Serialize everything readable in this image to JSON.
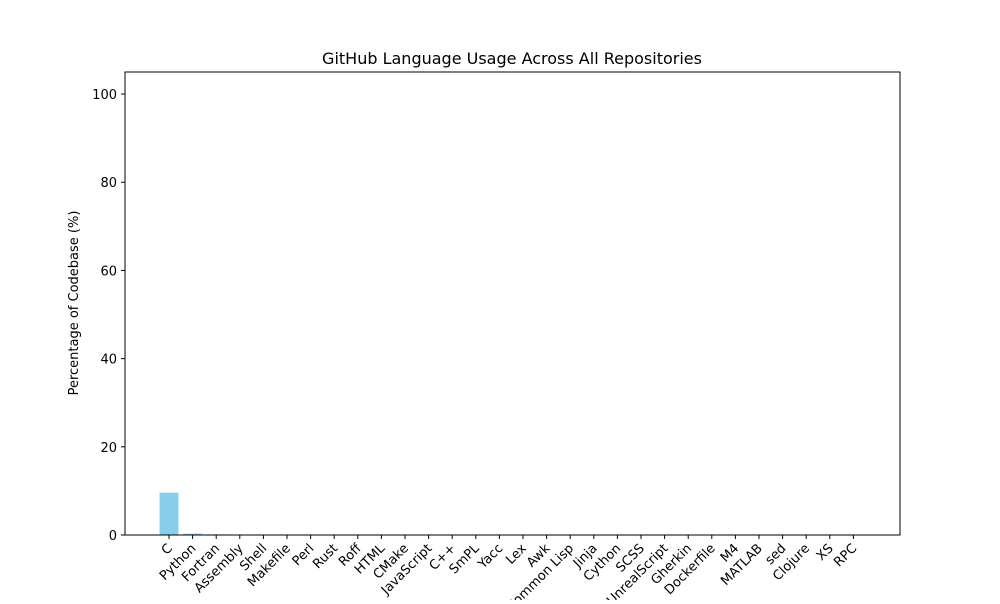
{
  "chart_data": {
    "type": "bar",
    "title": "GitHub Language Usage Across All Repositories",
    "xlabel": "",
    "ylabel": "Percentage of Codebase (%)",
    "ylim": [
      0,
      105
    ],
    "yticks": [
      0,
      20,
      40,
      60,
      80,
      100
    ],
    "grid": false,
    "bar_color": "#87ceeb",
    "categories": [
      "C",
      "Python",
      "Fortran",
      "Assembly",
      "Shell",
      "Makefile",
      "Perl",
      "Rust",
      "Roff",
      "HTML",
      "CMake",
      "JavaScript",
      "C++",
      "SmPL",
      "Yacc",
      "Lex",
      "Awk",
      "Common Lisp",
      "Jinja",
      "Cython",
      "SCSS",
      "UnrealScript",
      "Gherkin",
      "Dockerfile",
      "M4",
      "MATLAB",
      "sed",
      "Clojure",
      "XS",
      "RPC"
    ],
    "values": [
      9.6,
      0.3,
      0.15,
      0.1,
      0.08,
      0.06,
      0.05,
      0.04,
      0.04,
      0.03,
      0.03,
      0.02,
      0.02,
      0.02,
      0.01,
      0.01,
      0.01,
      0.01,
      0.01,
      0.01,
      0.01,
      0.01,
      0.01,
      0.01,
      0.01,
      0.01,
      0.01,
      0.01,
      0.01,
      0.01
    ]
  }
}
